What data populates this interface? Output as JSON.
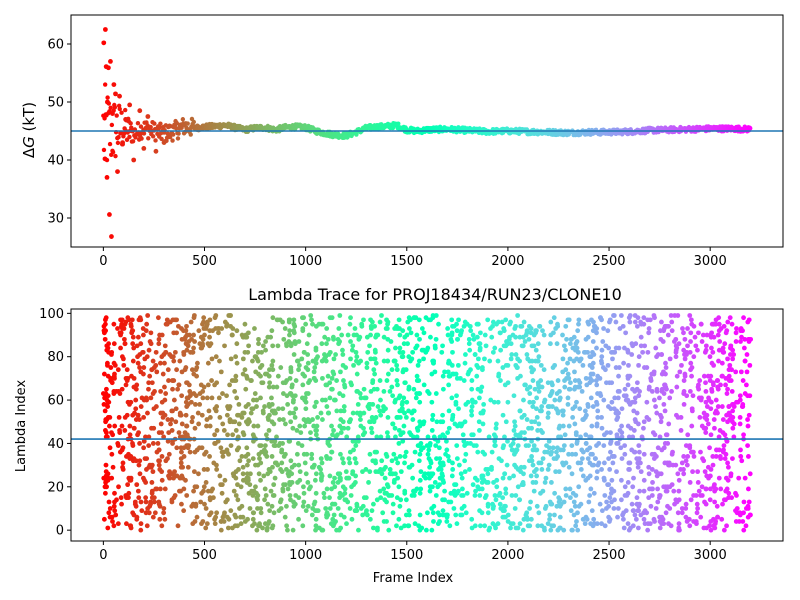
{
  "chart_data": [
    {
      "type": "scatter",
      "title": "",
      "xlabel": "",
      "ylabel": "ΔG (kT)",
      "ylabel_prefix": "Δ",
      "ylabel_var": "G",
      "ylabel_unit": " (kT)",
      "xlim": [
        -160,
        3360
      ],
      "ylim": [
        25,
        65
      ],
      "xticks": [
        0,
        500,
        1000,
        1500,
        2000,
        2500,
        3000
      ],
      "yticks": [
        30,
        40,
        50,
        60
      ],
      "reference_line": 45.0,
      "reference_line_color": "#1f77b4",
      "colormap": "rainbow",
      "trend": {
        "x": [
          0,
          50,
          100,
          150,
          200,
          250,
          300,
          350,
          400,
          450,
          500,
          550,
          600,
          650,
          700,
          750,
          800,
          850,
          900,
          950,
          1000,
          1050,
          1100,
          1150,
          1200,
          1250,
          1300,
          1350,
          1400,
          1450,
          1500,
          1550,
          1600,
          1700,
          1800,
          1900,
          2000,
          2100,
          2200,
          2300,
          2400,
          2500,
          2600,
          2700,
          2800,
          2900,
          3000,
          3100,
          3200
        ],
        "y": [
          45,
          45,
          45.5,
          44.5,
          45.5,
          45,
          44.5,
          45,
          45.8,
          45.5,
          45.7,
          45.8,
          46,
          45.6,
          45.2,
          45.5,
          45.6,
          45.2,
          45.6,
          45.7,
          45.6,
          45,
          44.6,
          44.3,
          44.2,
          44.8,
          45.5,
          45.7,
          45.8,
          46,
          45.2,
          45,
          45.2,
          45.3,
          45.1,
          44.9,
          45,
          44.9,
          44.8,
          44.7,
          44.8,
          44.8,
          44.9,
          45.1,
          45.2,
          45.3,
          45.4,
          45.4,
          45.3
        ]
      },
      "early_scatter": [
        {
          "x": 2,
          "y": 60.2
        },
        {
          "x": 10,
          "y": 62.5
        },
        {
          "x": 14,
          "y": 56.1
        },
        {
          "x": 20,
          "y": 50.0
        },
        {
          "x": 25,
          "y": 55.9
        },
        {
          "x": 30,
          "y": 30.6
        },
        {
          "x": 35,
          "y": 57.0
        },
        {
          "x": 8,
          "y": 40.2
        },
        {
          "x": 18,
          "y": 37.0
        },
        {
          "x": 40,
          "y": 26.8
        },
        {
          "x": 45,
          "y": 48.0
        },
        {
          "x": 52,
          "y": 53.0
        },
        {
          "x": 60,
          "y": 51.4
        },
        {
          "x": 70,
          "y": 38.0
        },
        {
          "x": 80,
          "y": 51.0
        },
        {
          "x": 95,
          "y": 43.0
        },
        {
          "x": 110,
          "y": 47.0
        },
        {
          "x": 130,
          "y": 49.5
        },
        {
          "x": 150,
          "y": 40.0
        },
        {
          "x": 180,
          "y": 48.5
        },
        {
          "x": 200,
          "y": 42.0
        },
        {
          "x": 220,
          "y": 47.5
        },
        {
          "x": 260,
          "y": 41.5
        },
        {
          "x": 300,
          "y": 43.0
        }
      ]
    },
    {
      "type": "scatter",
      "title": "Lambda Trace for PROJ18434/RUN23/CLONE10",
      "xlabel": "Frame Index",
      "ylabel": "Lambda Index",
      "xlim": [
        -160,
        3360
      ],
      "ylim": [
        -5,
        102
      ],
      "xticks": [
        0,
        500,
        1000,
        1500,
        2000,
        2500,
        3000
      ],
      "yticks": [
        0,
        20,
        40,
        60,
        80,
        100
      ],
      "reference_line": 42,
      "reference_line_color": "#1f77b4",
      "colormap": "rainbow",
      "frame_count": 3200,
      "lambda_range": [
        0,
        99
      ],
      "point_count": 3200,
      "early_points": [
        {
          "x": 0,
          "y": 63
        },
        {
          "x": 3,
          "y": 58
        },
        {
          "x": 6,
          "y": 61
        },
        {
          "x": 9,
          "y": 55
        },
        {
          "x": 12,
          "y": 62
        },
        {
          "x": 15,
          "y": 65
        },
        {
          "x": 18,
          "y": 60
        },
        {
          "x": 21,
          "y": 57
        },
        {
          "x": 24,
          "y": 52
        },
        {
          "x": 27,
          "y": 59
        },
        {
          "x": 30,
          "y": 48
        },
        {
          "x": 2,
          "y": 24
        },
        {
          "x": 5,
          "y": 5
        },
        {
          "x": 8,
          "y": 20
        },
        {
          "x": 11,
          "y": 92
        },
        {
          "x": 14,
          "y": 98
        },
        {
          "x": 20,
          "y": 77
        },
        {
          "x": 26,
          "y": 86
        },
        {
          "x": 33,
          "y": 38
        },
        {
          "x": 36,
          "y": 69
        }
      ]
    }
  ]
}
